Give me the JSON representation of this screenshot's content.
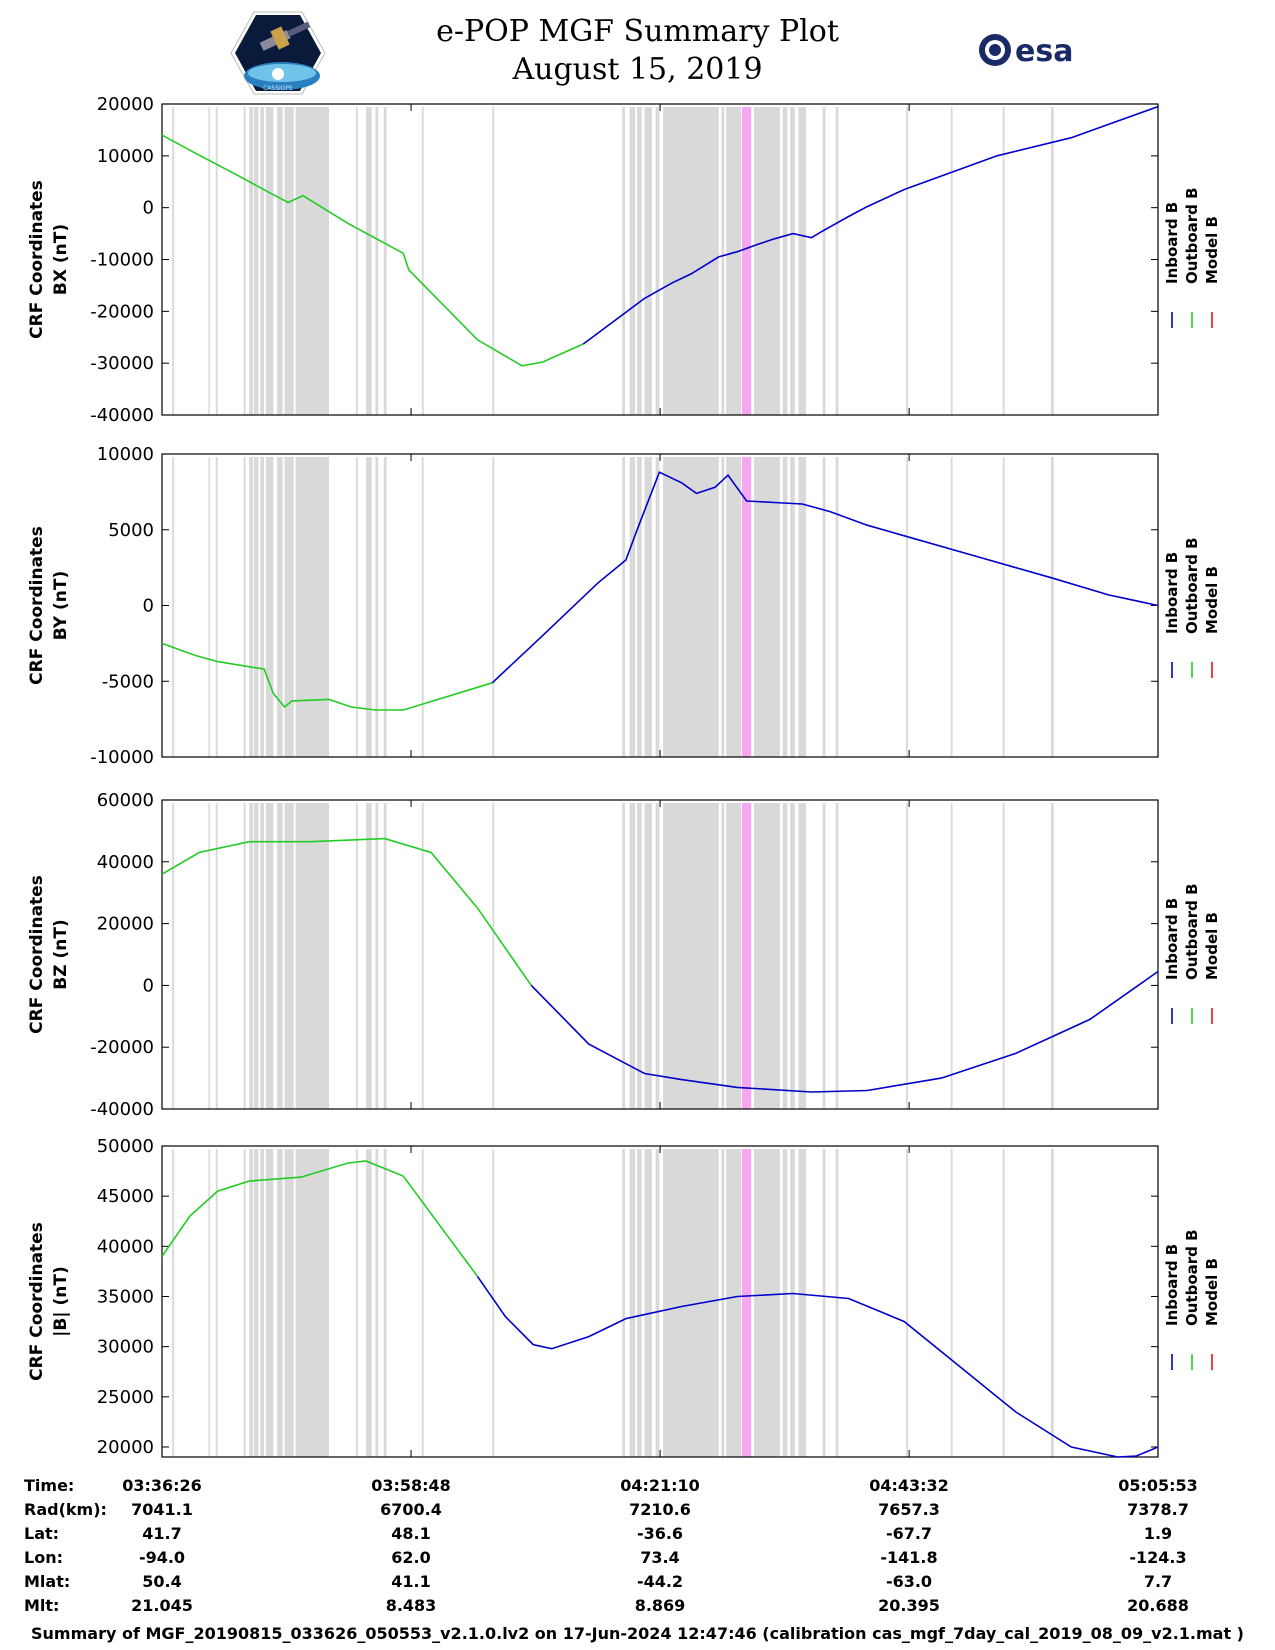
{
  "header": {
    "title_line1": "e-POP MGF Summary Plot",
    "title_line2": "August 15, 2019",
    "mission_logo_text": "CASSIOPE",
    "esa_logo_text": "esa"
  },
  "colors": {
    "inboard": "#0000cc",
    "outboard": "#22cc22",
    "model": "#ee1111",
    "gap_shade": "#d9d9d9",
    "highlight": "#f7a6f2"
  },
  "chart_data": [
    {
      "type": "line",
      "title": "",
      "ylabel": "CRF Coordinates BX (nT)",
      "ylabel_lines": [
        "CRF Coordinates",
        "BX (nT)"
      ],
      "ylim": [
        -40000,
        20000
      ],
      "yticks": [
        20000,
        10000,
        0,
        -10000,
        -20000,
        -30000,
        -40000
      ],
      "xlim": [
        0,
        5367
      ],
      "legend": [
        "Inboard B",
        "Outboard B",
        "Model B"
      ],
      "outboard_end": 2270,
      "series": [
        {
          "name": "B",
          "x": [
            0,
            180,
            420,
            600,
            680,
            760,
            1000,
            1300,
            1330,
            1700,
            1940,
            2050,
            2270,
            2600,
            2750,
            2850,
            3000,
            3100,
            3200,
            3300,
            3400,
            3500,
            3560,
            3600,
            3700,
            3800,
            4000,
            4500,
            4900,
            5367
          ],
          "y": [
            14000,
            10500,
            6000,
            2500,
            1000,
            2300,
            -3000,
            -8800,
            -12000,
            -25500,
            -30500,
            -29800,
            -26300,
            -17500,
            -14500,
            -12800,
            -9500,
            -8500,
            -7200,
            -6000,
            -5000,
            -5800,
            -4500,
            -3700,
            -1700,
            200,
            3500,
            10000,
            13500,
            19500
          ]
        }
      ]
    },
    {
      "type": "line",
      "title": "",
      "ylabel": "CRF Coordinates BY (nT)",
      "ylabel_lines": [
        "CRF Coordinates",
        "BY (nT)"
      ],
      "ylim": [
        -10000,
        10000
      ],
      "yticks": [
        10000,
        5000,
        0,
        -5000,
        -10000
      ],
      "xlim": [
        0,
        5367
      ],
      "legend": [
        "Inboard B",
        "Outboard B",
        "Model B"
      ],
      "outboard_end": 1780,
      "series": [
        {
          "name": "B",
          "x": [
            0,
            180,
            300,
            550,
            600,
            660,
            700,
            900,
            1020,
            1150,
            1300,
            1780,
            2050,
            2350,
            2500,
            2560,
            2680,
            2800,
            2880,
            2980,
            3050,
            3150,
            3300,
            3450,
            3600,
            3800,
            4000,
            4400,
            4800,
            5100,
            5367
          ],
          "y": [
            -2500,
            -3300,
            -3700,
            -4200,
            -5800,
            -6700,
            -6300,
            -6200,
            -6700,
            -6900,
            -6900,
            -5100,
            -2000,
            1500,
            3000,
            5000,
            8800,
            8100,
            7400,
            7800,
            8600,
            6900,
            6800,
            6700,
            6200,
            5300,
            4600,
            3200,
            1800,
            700,
            0
          ]
        }
      ]
    },
    {
      "type": "line",
      "title": "",
      "ylabel": "CRF Coordinates BZ (nT)",
      "ylabel_lines": [
        "CRF Coordinates",
        "BZ (nT)"
      ],
      "ylim": [
        -40000,
        60000
      ],
      "yticks": [
        60000,
        40000,
        20000,
        0,
        -20000,
        -40000
      ],
      "xlim": [
        0,
        5367
      ],
      "legend": [
        "Inboard B",
        "Outboard B",
        "Model B"
      ],
      "outboard_end": 1990,
      "series": [
        {
          "name": "B",
          "x": [
            0,
            200,
            470,
            800,
            1200,
            1450,
            1700,
            1990,
            2300,
            2600,
            2800,
            3100,
            3500,
            3800,
            4200,
            4600,
            5000,
            5367
          ],
          "y": [
            36000,
            43000,
            46500,
            46500,
            47500,
            43000,
            25000,
            0,
            -19000,
            -28500,
            -30500,
            -33000,
            -34500,
            -34000,
            -30000,
            -22000,
            -11000,
            4500
          ]
        }
      ]
    },
    {
      "type": "line",
      "title": "",
      "ylabel": "CRF Coordinates |B| (nT)",
      "ylabel_lines": [
        "CRF Coordinates",
        "|B| (nT)"
      ],
      "ylim": [
        19000,
        50000
      ],
      "yticks": [
        50000,
        45000,
        40000,
        35000,
        30000,
        25000,
        20000
      ],
      "xlim": [
        0,
        5367
      ],
      "legend": [
        "Inboard B",
        "Outboard B",
        "Model B"
      ],
      "outboard_end": 1700,
      "series": [
        {
          "name": "B",
          "x": [
            0,
            150,
            300,
            470,
            750,
            1000,
            1100,
            1300,
            1500,
            1700,
            1850,
            2000,
            2100,
            2300,
            2500,
            2800,
            3100,
            3400,
            3700,
            4000,
            4300,
            4600,
            4900,
            5150,
            5250,
            5367
          ],
          "y": [
            39000,
            43000,
            45500,
            46500,
            46900,
            48300,
            48500,
            47000,
            42000,
            37000,
            33000,
            30200,
            29800,
            31000,
            32800,
            34000,
            35000,
            35300,
            34800,
            32500,
            28000,
            23500,
            20000,
            19000,
            19100,
            20000
          ]
        }
      ]
    }
  ],
  "x_axis": {
    "tick_positions": [
      0,
      1342,
      2684,
      4026,
      5367
    ],
    "highlight_range": [
      3125,
      3175
    ],
    "gap_bands": [
      [
        55,
        65
      ],
      [
        250,
        258
      ],
      [
        290,
        300
      ],
      [
        440,
        450
      ],
      [
        470,
        490
      ],
      [
        495,
        520
      ],
      [
        530,
        550
      ],
      [
        560,
        600
      ],
      [
        620,
        650
      ],
      [
        660,
        710
      ],
      [
        720,
        900
      ],
      [
        1045,
        1055
      ],
      [
        1100,
        1130
      ],
      [
        1150,
        1165
      ],
      [
        1195,
        1210
      ],
      [
        1400,
        1410
      ],
      [
        1780,
        1790
      ],
      [
        2480,
        2495
      ],
      [
        2520,
        2550
      ],
      [
        2560,
        2585
      ],
      [
        2600,
        2640
      ],
      [
        2660,
        2680
      ],
      [
        2700,
        3000
      ],
      [
        3015,
        3030
      ],
      [
        3040,
        3120
      ],
      [
        3190,
        3330
      ],
      [
        3345,
        3370
      ],
      [
        3385,
        3410
      ],
      [
        3430,
        3470
      ],
      [
        3560,
        3575
      ],
      [
        3630,
        3645
      ],
      [
        4010,
        4020
      ],
      [
        4250,
        4260
      ],
      [
        4530,
        4540
      ],
      [
        4790,
        4805
      ]
    ]
  },
  "ephemeris": {
    "labels": [
      "Time:",
      "Rad(km):",
      "Lat:",
      "Lon:",
      "Mlat:",
      "Mlt:"
    ],
    "columns": [
      [
        "03:36:26",
        "7041.1",
        "41.7",
        "-94.0",
        "50.4",
        "21.045"
      ],
      [
        "03:58:48",
        "6700.4",
        "48.1",
        "62.0",
        "41.1",
        "8.483"
      ],
      [
        "04:21:10",
        "7210.6",
        "-36.6",
        "73.4",
        "-44.2",
        "8.869"
      ],
      [
        "04:43:32",
        "7657.3",
        "-67.7",
        "-141.8",
        "-63.0",
        "20.395"
      ],
      [
        "05:05:53",
        "7378.7",
        "1.9",
        "-124.3",
        "7.7",
        "20.688"
      ]
    ]
  },
  "footer": {
    "text": "Summary of MGF_20190815_033626_050553_v2.1.0.lv2 on 17-Jun-2024 12:47:46 (calibration cas_mgf_7day_cal_2019_08_09_v2.1.mat )"
  }
}
